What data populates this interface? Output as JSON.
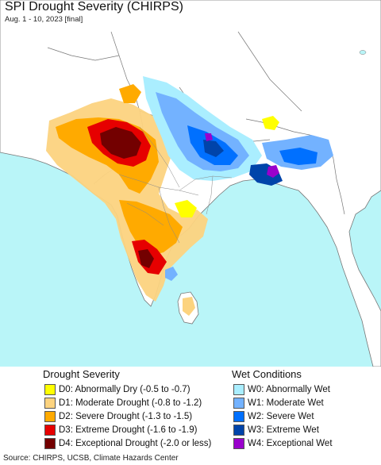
{
  "title": "SPI Drought Severity (CHIRPS)",
  "subtitle": "Aug. 1 - 10, 2023 [final]",
  "legend": {
    "drought": {
      "title": "Drought Severity",
      "items": [
        {
          "label": "D0: Abnormally Dry (-0.5 to -0.7)",
          "color": "#ffff00"
        },
        {
          "label": "D1: Moderate Drought (-0.8 to -1.2)",
          "color": "#fcd37f"
        },
        {
          "label": "D2: Severe Drought (-1.3 to -1.5)",
          "color": "#ffaa00"
        },
        {
          "label": "D3: Extreme Drought (-1.6 to -1.9)",
          "color": "#e60000"
        },
        {
          "label": "D4: Exceptional Drought (-2.0 or less)",
          "color": "#730000"
        }
      ]
    },
    "wet": {
      "title": "Wet Conditions",
      "items": [
        {
          "label": "W0: Abnormally Wet",
          "color": "#aaeeff"
        },
        {
          "label": "W1: Moderate Wet",
          "color": "#73b2ff"
        },
        {
          "label": "W2: Severe Wet",
          "color": "#0070ff"
        },
        {
          "label": "W3: Extreme Wet",
          "color": "#0044aa"
        },
        {
          "label": "W4: Exceptional Wet",
          "color": "#9900cc"
        }
      ]
    }
  },
  "source": "Source: CHIRPS, UCSB, Climate Hazards Center",
  "colors": {
    "ocean": "#b9f5f8",
    "land": "#ffffff",
    "border": "#666666"
  }
}
